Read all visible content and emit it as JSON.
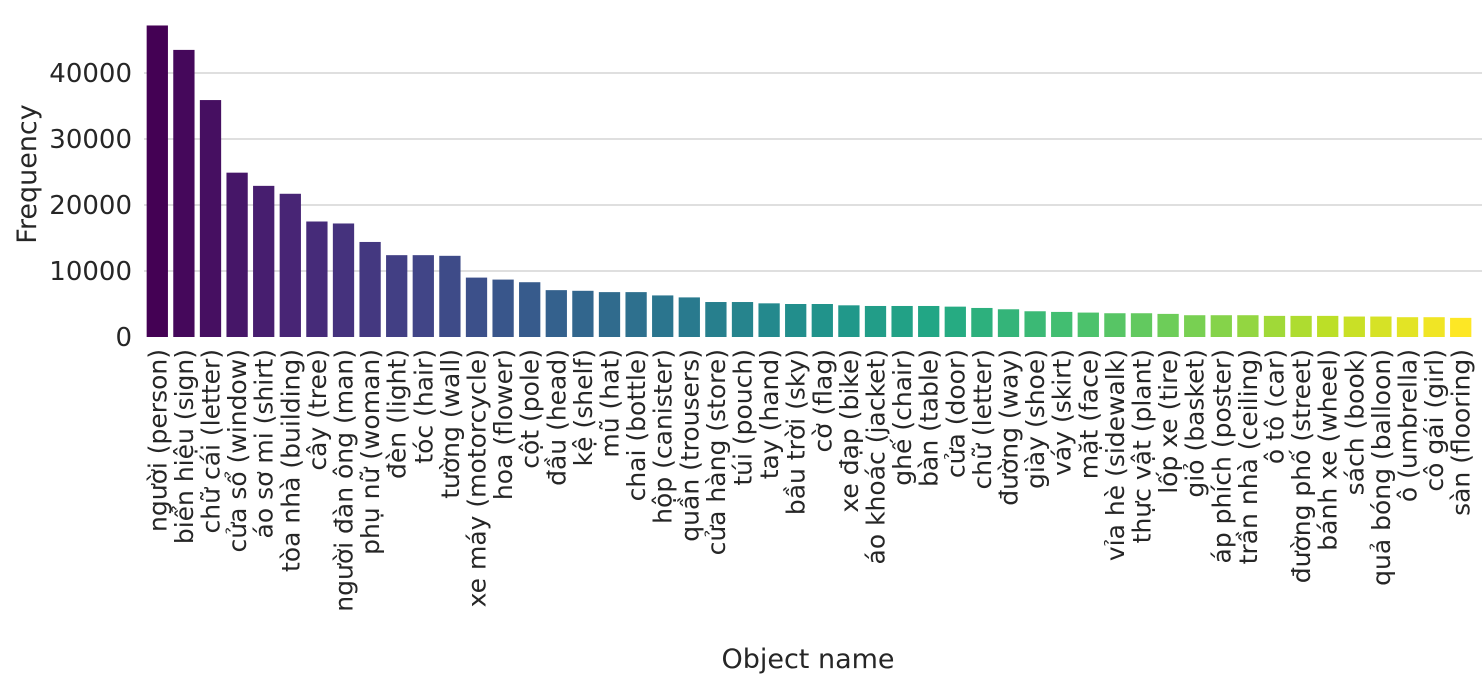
{
  "chart_data": {
    "type": "bar",
    "xlabel": "Object name",
    "ylabel": "Frequency",
    "ylim": [
      0,
      47500
    ],
    "yticks": [
      0,
      10000,
      20000,
      30000,
      40000
    ],
    "grid": "horizontal",
    "palette": "viridis",
    "categories": [
      "người (person)",
      "biển hiệu (sign)",
      "chữ cái (letter)",
      "cửa sổ (window)",
      "áo sơ mi (shirt)",
      "tòa nhà (building)",
      "cây (tree)",
      "người đàn ông (man)",
      "phụ nữ (woman)",
      "đèn (light)",
      "tóc (hair)",
      "tường (wall)",
      "xe máy (motorcycle)",
      "hoa (flower)",
      "cột (pole)",
      "đầu (head)",
      "kệ (shelf)",
      "mũ (hat)",
      "chai (bottle)",
      "hộp (canister)",
      "quần (trousers)",
      "cửa hàng (store)",
      "túi (pouch)",
      "tay (hand)",
      "bầu trời (sky)",
      "cờ (flag)",
      "xe đạp (bike)",
      "áo khoác (jacket)",
      "ghế (chair)",
      "bàn (table)",
      "cửa (door)",
      "chữ (letter)",
      "đường (way)",
      "giày (shoe)",
      "váy (skirt)",
      "mặt (face)",
      "vỉa hè (sidewalk)",
      "thực vật (plant)",
      "lốp xe (tire)",
      "giỏ (basket)",
      "áp phích (poster)",
      "trần nhà (ceiling)",
      "ô tô (car)",
      "đường phố (street)",
      "bánh xe (wheel)",
      "sách (book)",
      "quả bóng (balloon)",
      "ô (umbrella)",
      "cô gái (girl)",
      "sàn (flooring)"
    ],
    "values": [
      47200,
      43500,
      35900,
      24900,
      22900,
      21700,
      17500,
      17200,
      14400,
      12400,
      12400,
      12300,
      9000,
      8700,
      8300,
      7100,
      7000,
      6800,
      6800,
      6300,
      6000,
      5300,
      5300,
      5100,
      5000,
      5000,
      4800,
      4700,
      4700,
      4700,
      4600,
      4400,
      4200,
      3900,
      3800,
      3700,
      3600,
      3600,
      3500,
      3300,
      3300,
      3300,
      3200,
      3200,
      3200,
      3100,
      3100,
      3000,
      3000,
      2900
    ]
  }
}
